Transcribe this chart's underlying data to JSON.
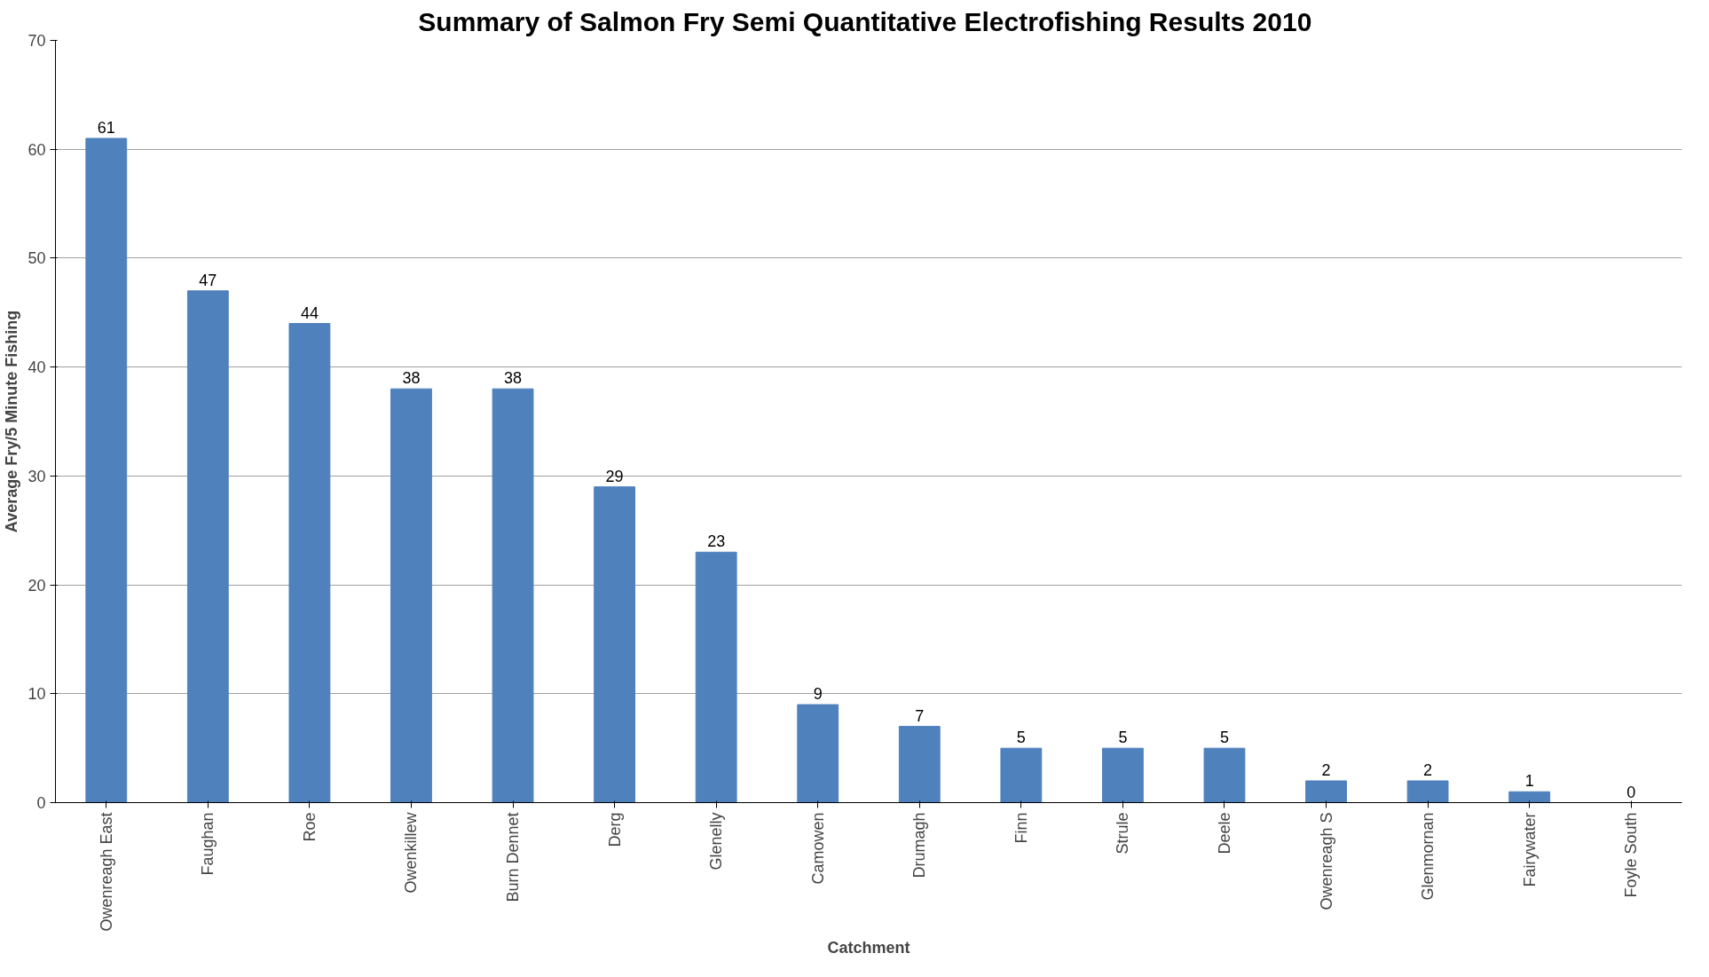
{
  "chart_data": {
    "type": "bar",
    "title": "Summary of Salmon Fry Semi Quantitative Electrofishing  Results 2010",
    "xlabel": "Catchment",
    "ylabel": "Average Fry/5 Minute Fishing",
    "categories": [
      "Owenreagh East",
      "Faughan",
      "Roe",
      "Owenkillew",
      "Burn Dennet",
      "Derg",
      "Glenelly",
      "Camowen",
      "Drumagh",
      "Finn",
      "Strule",
      "Deele",
      "Owenreagh S",
      "Glenmornan",
      "Fairywater",
      "Foyle South"
    ],
    "values": [
      61,
      47,
      44,
      38,
      38,
      29,
      23,
      9,
      7,
      5,
      5,
      5,
      2,
      2,
      1,
      0
    ],
    "color": "#4f81bd",
    "ylim": [
      0,
      70
    ],
    "yticks": [
      0,
      10,
      20,
      30,
      40,
      50,
      60,
      70
    ],
    "grid": "y",
    "data_labels": true
  }
}
